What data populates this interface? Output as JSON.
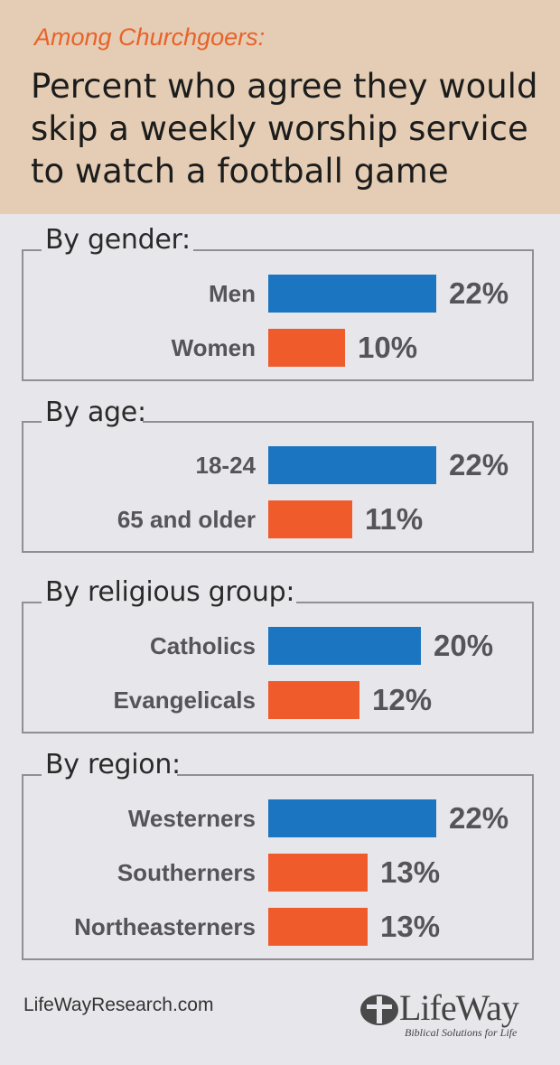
{
  "header": {
    "kicker": "Among Churchgoers:",
    "title": "Percent who agree they would skip a weekly worship service to watch a football game"
  },
  "chart_data": {
    "type": "bar",
    "orientation": "horizontal",
    "title": "Percent who agree they would skip a weekly worship service to watch a football game",
    "subtitle": "Among Churchgoers:",
    "unit": "%",
    "colors": {
      "highlight": "#1c75c1",
      "comparison": "#ef5b2b"
    },
    "groups": [
      {
        "label": "By gender:",
        "rows": [
          {
            "label": "Men",
            "value": 22,
            "display": "22%",
            "color": "#1c75c1"
          },
          {
            "label": "Women",
            "value": 10,
            "display": "10%",
            "color": "#ef5b2b"
          }
        ]
      },
      {
        "label": "By age:",
        "rows": [
          {
            "label": "18-24",
            "value": 22,
            "display": "22%",
            "color": "#1c75c1"
          },
          {
            "label": "65 and older",
            "value": 11,
            "display": "11%",
            "color": "#ef5b2b"
          }
        ]
      },
      {
        "label": "By religious group:",
        "rows": [
          {
            "label": "Catholics",
            "value": 20,
            "display": "20%",
            "color": "#1c75c1"
          },
          {
            "label": "Evangelicals",
            "value": 12,
            "display": "12%",
            "color": "#ef5b2b"
          }
        ]
      },
      {
        "label": "By region:",
        "rows": [
          {
            "label": "Westerners",
            "value": 22,
            "display": "22%",
            "color": "#1c75c1"
          },
          {
            "label": "Southerners",
            "value": 13,
            "display": "13%",
            "color": "#ef5b2b"
          },
          {
            "label": "Northeasterners",
            "value": 13,
            "display": "13%",
            "color": "#ef5b2b"
          }
        ]
      }
    ]
  },
  "footer": {
    "url": "LifeWayResearch.com",
    "logo_text": "LifeWay",
    "logo_tagline": "Biblical Solutions for Life",
    "logo_icon": "lifeway-logo-icon"
  }
}
